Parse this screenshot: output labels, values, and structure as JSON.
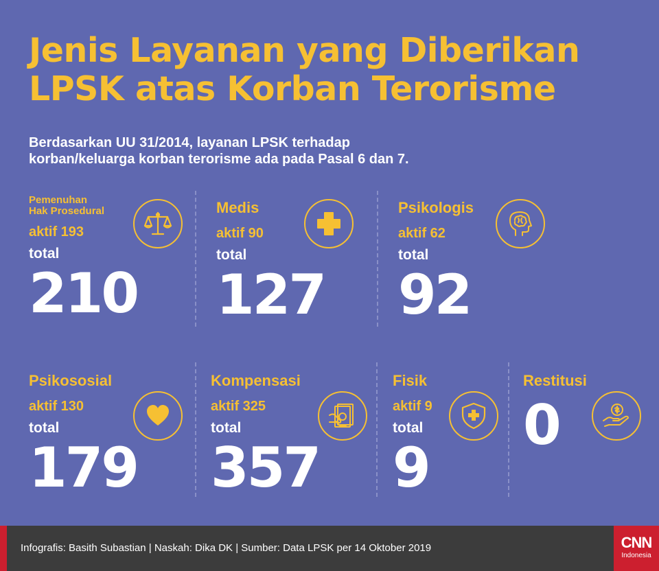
{
  "title": {
    "line1": "Jenis Layanan yang Diberikan",
    "line2": "LPSK atas Korban Terorisme"
  },
  "subtitle": {
    "line1": "Berdasarkan UU 31/2014, layanan LPSK terhadap",
    "line2": "korban/keluarga korban terorisme ada pada Pasal 6 dan 7."
  },
  "services": [
    {
      "label_line1": "Pemenuhan",
      "label_line2": "Hak Prosedural",
      "active": "aktif 193",
      "total_label": "total",
      "total": "210",
      "icon": "scales-of-justice-icon"
    },
    {
      "label": "Medis",
      "active": "aktif 90",
      "total_label": "total",
      "total": "127",
      "icon": "medical-cross-icon"
    },
    {
      "label": "Psikologis",
      "active": "aktif 62",
      "total_label": "total",
      "total": "92",
      "icon": "brain-head-icon"
    },
    {
      "label": "Psikososial",
      "active": "aktif 130",
      "total_label": "total",
      "total": "179",
      "icon": "heart-icon"
    },
    {
      "label": "Kompensasi",
      "active": "aktif 325",
      "total_label": "total",
      "total": "357",
      "icon": "money-hand-icon"
    },
    {
      "label": "Fisik",
      "active": "aktif 9",
      "total_label": "total",
      "total": "9",
      "icon": "shield-cross-icon"
    },
    {
      "label": "Restitusi",
      "total": "0",
      "icon": "coin-hand-icon"
    }
  ],
  "footer": {
    "credit": "Infografis: Basith Subastian | Naskah: Dika DK | Sumber: Data LPSK per 14 Oktober 2019",
    "logo_brand": "CNN",
    "logo_sub": "Indonesia"
  },
  "colors": {
    "background": "#5f68b0",
    "accent": "#f6c033",
    "footer": "#3c3c3c",
    "brand_red": "#cc1f2f"
  }
}
